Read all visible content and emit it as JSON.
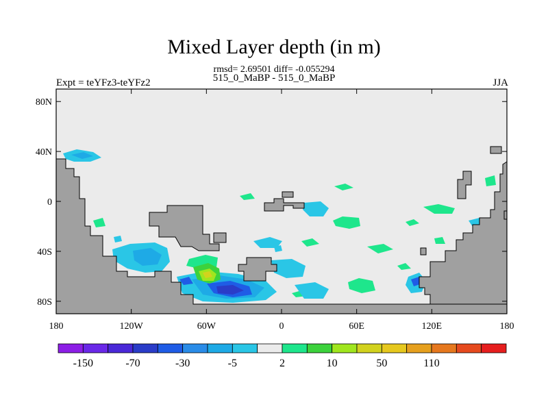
{
  "chart_data": {
    "type": "heatmap",
    "title": "Mixed Layer depth (in m)",
    "subtitle": "rmsd= 2.69501 diff= -0.055294",
    "left_label": "Expt = teYFz3-teYFz2",
    "center_label": "515_0_MaBP - 515_0_MaBP",
    "right_label": "JJA",
    "x_ticks": [
      "180",
      "120W",
      "60W",
      "0",
      "60E",
      "120E",
      "180"
    ],
    "x_tick_values": [
      -180,
      -120,
      -60,
      0,
      60,
      120,
      180
    ],
    "y_ticks": [
      "80N",
      "40N",
      "0",
      "40S",
      "80S"
    ],
    "y_tick_values": [
      80,
      40,
      0,
      -40,
      -80
    ],
    "xlim": [
      -180,
      180
    ],
    "ylim": [
      -90,
      90
    ],
    "colorbar": {
      "colors": [
        "#8c1ee6",
        "#6a28e8",
        "#4a28d8",
        "#2a3cc8",
        "#1f5ce6",
        "#2a8ce8",
        "#1eaae6",
        "#2ac6e6",
        "#ebebeb",
        "#1ee68c",
        "#3cd23c",
        "#a0e61e",
        "#d2d21e",
        "#e6c81e",
        "#e6a01e",
        "#e6781e",
        "#e64a1e",
        "#e61e1e"
      ],
      "labels": [
        "-150",
        "-70",
        "-30",
        "-5",
        "2",
        "10",
        "50",
        "110"
      ]
    },
    "land_color": "#a0a0a0",
    "ocean_color": "#ebebeb"
  }
}
